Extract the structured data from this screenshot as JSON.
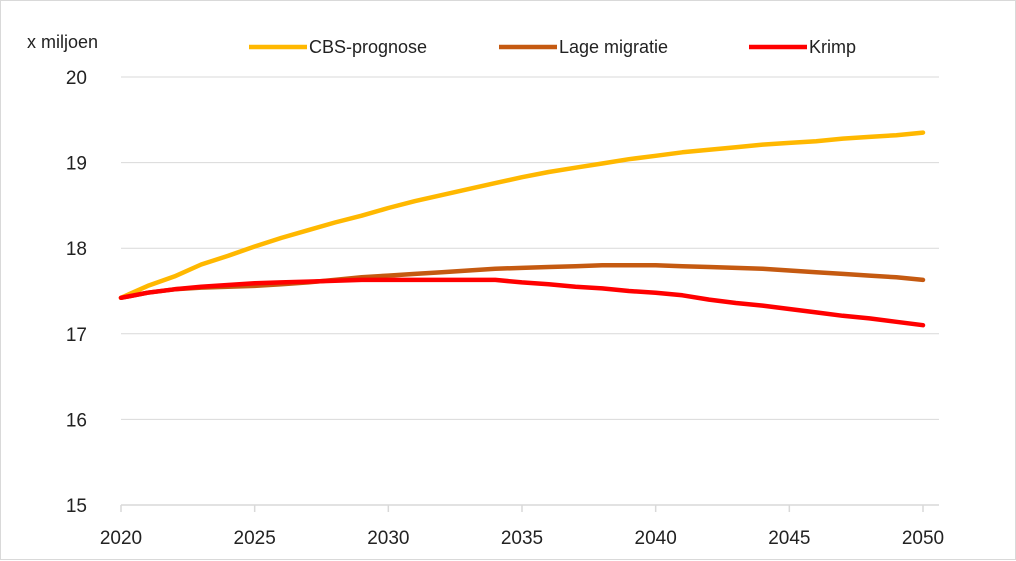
{
  "chart_data": {
    "type": "line",
    "title": "",
    "xlabel": "",
    "ylabel": "x miljoen",
    "xlim": [
      2020,
      2050
    ],
    "ylim": [
      15,
      20
    ],
    "x_ticks": [
      2020,
      2025,
      2030,
      2035,
      2040,
      2045,
      2050
    ],
    "y_ticks": [
      15,
      16,
      17,
      18,
      19,
      20
    ],
    "grid": "horizontal",
    "legend_position": "top",
    "x": [
      2020,
      2021,
      2022,
      2023,
      2024,
      2025,
      2026,
      2027,
      2028,
      2029,
      2030,
      2031,
      2032,
      2033,
      2034,
      2035,
      2036,
      2037,
      2038,
      2039,
      2040,
      2041,
      2042,
      2043,
      2044,
      2045,
      2046,
      2047,
      2048,
      2049,
      2050
    ],
    "series": [
      {
        "name": "CBS-prognose",
        "color": "#ffb800",
        "values": [
          17.42,
          17.56,
          17.67,
          17.81,
          17.91,
          18.02,
          18.12,
          18.21,
          18.3,
          18.38,
          18.47,
          18.55,
          18.62,
          18.69,
          18.76,
          18.83,
          18.89,
          18.94,
          18.99,
          19.04,
          19.08,
          19.12,
          19.15,
          19.18,
          19.21,
          19.23,
          19.25,
          19.28,
          19.3,
          19.32,
          19.35
        ]
      },
      {
        "name": "Lage migratie",
        "color": "#c55a11",
        "values": [
          17.42,
          17.48,
          17.52,
          17.54,
          17.55,
          17.56,
          17.58,
          17.6,
          17.63,
          17.66,
          17.68,
          17.7,
          17.72,
          17.74,
          17.76,
          17.77,
          17.78,
          17.79,
          17.8,
          17.8,
          17.8,
          17.79,
          17.78,
          17.77,
          17.76,
          17.74,
          17.72,
          17.7,
          17.68,
          17.66,
          17.63
        ]
      },
      {
        "name": "Krimp",
        "color": "#ff0000",
        "values": [
          17.42,
          17.48,
          17.52,
          17.55,
          17.57,
          17.59,
          17.6,
          17.61,
          17.62,
          17.63,
          17.63,
          17.63,
          17.63,
          17.63,
          17.63,
          17.6,
          17.58,
          17.55,
          17.53,
          17.5,
          17.48,
          17.45,
          17.4,
          17.36,
          17.33,
          17.29,
          17.25,
          17.21,
          17.18,
          17.14,
          17.1
        ]
      }
    ]
  }
}
